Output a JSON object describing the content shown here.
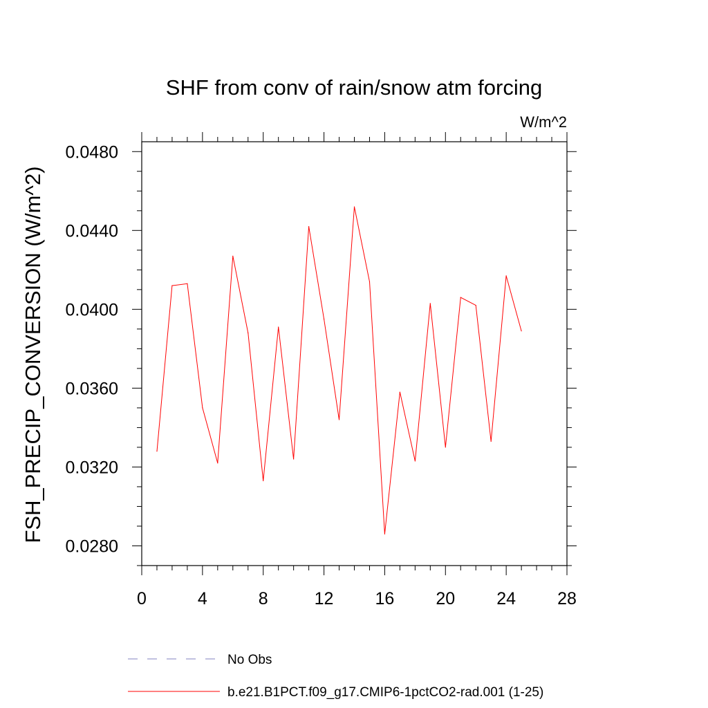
{
  "chart_data": {
    "type": "line",
    "title": "SHF from conv of rain/snow atm forcing",
    "units": "W/m^2",
    "xlabel": "",
    "ylabel": "FSH_PRECIP_CONVERSION  (W/m^2)",
    "xlim": [
      0,
      28
    ],
    "ylim": [
      0.027,
      0.0485
    ],
    "x_ticks": [
      0,
      4,
      8,
      12,
      16,
      20,
      24,
      28
    ],
    "x_tick_labels": [
      "0",
      "4",
      "8",
      "12",
      "16",
      "20",
      "24",
      "28"
    ],
    "y_ticks": [
      0.028,
      0.032,
      0.036,
      0.04,
      0.044,
      0.048
    ],
    "y_tick_labels": [
      "0.0280",
      "0.0320",
      "0.0360",
      "0.0400",
      "0.0440",
      "0.0480"
    ],
    "grid": false,
    "legend_position": "bottom",
    "series": [
      {
        "name": "No Obs",
        "color": "#8080c0",
        "dash": true,
        "x": [],
        "values": []
      },
      {
        "name": "b.e21.B1PCT.f09_g17.CMIP6-1pctCO2-rad.001 (1-25)",
        "color": "#ff0000",
        "dash": false,
        "x": [
          1,
          2,
          3,
          4,
          5,
          6,
          7,
          8,
          9,
          10,
          11,
          12,
          13,
          14,
          15,
          16,
          17,
          18,
          19,
          20,
          21,
          22,
          23,
          24,
          25
        ],
        "values": [
          0.0328,
          0.0412,
          0.0413,
          0.035,
          0.0322,
          0.0427,
          0.0388,
          0.0313,
          0.0391,
          0.0324,
          0.0442,
          0.0395,
          0.0344,
          0.0452,
          0.0414,
          0.0286,
          0.0358,
          0.0323,
          0.0403,
          0.033,
          0.0406,
          0.0402,
          0.0333,
          0.0417,
          0.0389
        ]
      }
    ]
  }
}
